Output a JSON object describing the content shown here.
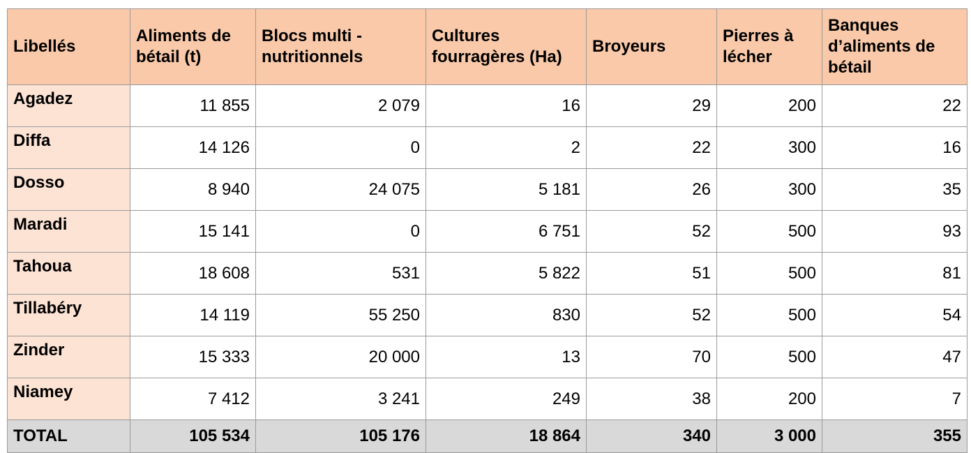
{
  "table": {
    "headers": [
      "Libellés",
      "Aliments de bétail (t)",
      "Blocs multi - nutritionnels",
      "Cultures fourragères (Ha)",
      "Broyeurs",
      "Pierres à lécher",
      "Banques d’aliments de bétail"
    ],
    "rows": [
      [
        "Agadez",
        "11 855",
        "2 079",
        "16",
        "29",
        "200",
        "22"
      ],
      [
        "Diffa",
        "14 126",
        "0",
        "2",
        "22",
        "300",
        "16"
      ],
      [
        "Dosso",
        "8 940",
        "24 075",
        "5 181",
        "26",
        "300",
        "35"
      ],
      [
        "Maradi",
        "15 141",
        "0",
        "6 751",
        "52",
        "500",
        "93"
      ],
      [
        "Tahoua",
        "18 608",
        "531",
        "5 822",
        "51",
        "500",
        "81"
      ],
      [
        "Tillabéry",
        "14 119",
        "55 250",
        "830",
        "52",
        "500",
        "54"
      ],
      [
        "Zinder",
        "15 333",
        "20 000",
        "13",
        "70",
        "500",
        "47"
      ],
      [
        "Niamey",
        "7 412",
        "3 241",
        "249",
        "38",
        "200",
        "7"
      ]
    ],
    "total": [
      "TOTAL",
      "105 534",
      "105 176",
      "18 864",
      "340",
      "3 000",
      "355"
    ]
  }
}
